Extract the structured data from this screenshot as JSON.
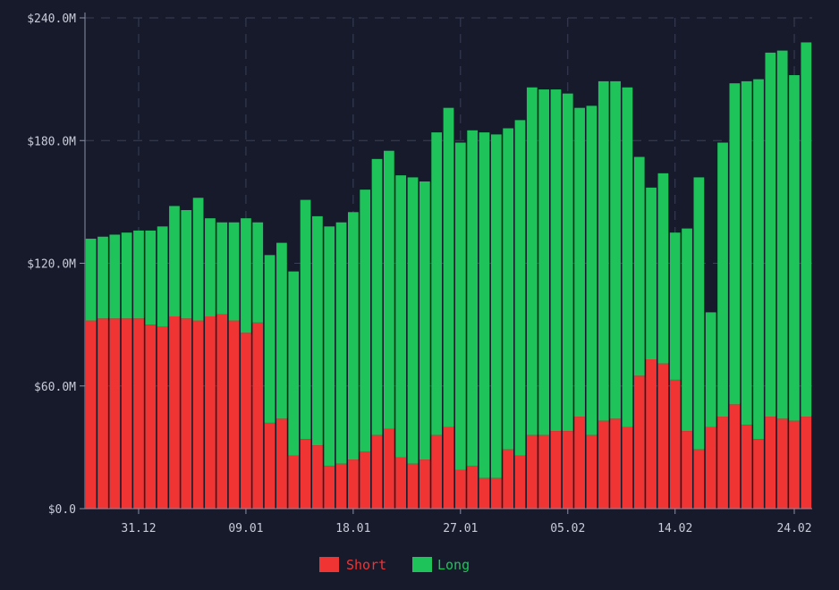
{
  "chart_data": {
    "type": "bar",
    "stacked": true,
    "categories": [
      "27.12",
      "28.12",
      "29.12",
      "30.12",
      "31.12",
      "01.01",
      "02.01",
      "03.01",
      "04.01",
      "05.01",
      "06.01",
      "07.01",
      "08.01",
      "09.01",
      "10.01",
      "11.01",
      "12.01",
      "13.01",
      "14.01",
      "15.01",
      "16.01",
      "17.01",
      "18.01",
      "19.01",
      "20.01",
      "21.01",
      "22.01",
      "23.01",
      "24.01",
      "25.01",
      "26.01",
      "27.01",
      "28.01",
      "29.01",
      "30.01",
      "31.01",
      "01.02",
      "02.02",
      "03.02",
      "04.02",
      "05.02",
      "06.02",
      "07.02",
      "08.02",
      "09.02",
      "10.02",
      "11.02",
      "12.02",
      "13.02",
      "14.02",
      "15.02",
      "16.02",
      "17.02",
      "18.02",
      "19.02",
      "20.02",
      "21.02",
      "22.02",
      "23.02",
      "24.02",
      "25.02"
    ],
    "series": [
      {
        "name": "Short",
        "color": "#f03434",
        "values": [
          92,
          93,
          93,
          93,
          93,
          90,
          89,
          94,
          93,
          92,
          94,
          95,
          92,
          86,
          91,
          42,
          44,
          26,
          34,
          31,
          21,
          22,
          24,
          28,
          36,
          39,
          25,
          22,
          24,
          36,
          40,
          19,
          21,
          15,
          15,
          29,
          26,
          36,
          36,
          38,
          38,
          45,
          36,
          43,
          44,
          40,
          65,
          73,
          71,
          63,
          38,
          29,
          40,
          45,
          51,
          41,
          34,
          45,
          44,
          43,
          45
        ]
      },
      {
        "name": "Long",
        "color": "#1ec45a",
        "values": [
          40,
          40,
          41,
          42,
          43,
          46,
          49,
          54,
          53,
          60,
          48,
          45,
          48,
          56,
          49,
          82,
          86,
          90,
          117,
          112,
          117,
          118,
          121,
          128,
          135,
          136,
          138,
          140,
          136,
          148,
          156,
          160,
          164,
          169,
          168,
          157,
          164,
          170,
          169,
          167,
          165,
          151,
          161,
          166,
          165,
          166,
          107,
          84,
          93,
          72,
          99,
          133,
          56,
          134,
          157,
          168,
          176,
          178,
          180,
          169,
          183
        ]
      }
    ],
    "title": "",
    "xlabel": "",
    "ylabel": "",
    "ylim": [
      0,
      240
    ],
    "y_ticks": [
      "$0.0",
      "$60.0M",
      "$120.0M",
      "$180.0M",
      "$240.0M"
    ],
    "x_tick_labels": [
      "31.12",
      "09.01",
      "18.01",
      "27.01",
      "05.02",
      "14.02",
      "24.02"
    ],
    "x_tick_indices": [
      4,
      13,
      22,
      31,
      40,
      49,
      59
    ],
    "legend_position": "bottom-center",
    "grid": true
  },
  "legend": {
    "short": "Short",
    "long": "Long"
  },
  "overlay_label": ""
}
